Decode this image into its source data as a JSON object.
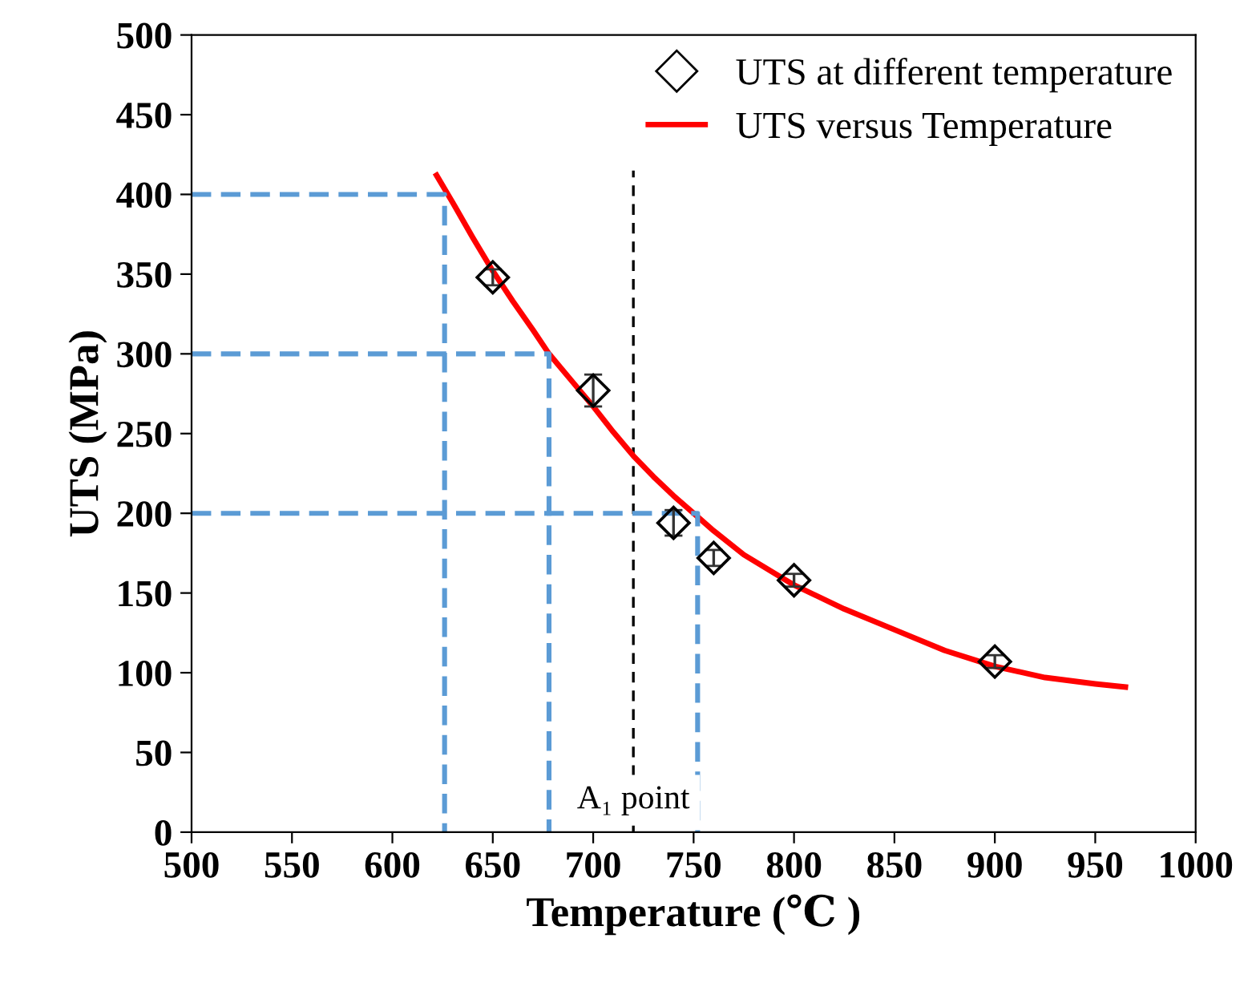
{
  "chart_data": {
    "type": "scatter",
    "xlabel": "Temperature (℃ )",
    "ylabel": "UTS (MPa)",
    "xlim": [
      500,
      1000
    ],
    "xticks": [
      500,
      550,
      600,
      650,
      700,
      750,
      800,
      850,
      900,
      950,
      1000
    ],
    "ylim": [
      0,
      500
    ],
    "yticks": [
      0,
      50,
      100,
      150,
      200,
      250,
      300,
      350,
      400,
      450,
      500
    ],
    "grid": false,
    "legend": "top right",
    "marker": "diamond",
    "series": [
      {
        "name": "UTS at different temperature",
        "color": "#000000",
        "x": [
          650,
          700,
          740,
          760,
          800,
          900
        ],
        "values": [
          348,
          277,
          194,
          172,
          158,
          107
        ],
        "errors": [
          5,
          10,
          8,
          5,
          4,
          4
        ]
      },
      {
        "name": "UTS versus Temperature",
        "type": "line",
        "color": "#ff0000",
        "marker": "none",
        "line_style": "solid",
        "x": [
          622,
          630,
          640,
          650,
          660,
          670,
          678,
          690,
          700,
          710,
          720,
          730,
          740,
          750,
          760,
          775,
          800,
          825,
          850,
          875,
          900,
          925,
          950,
          965
        ],
        "values": [
          412,
          395,
          373,
          352,
          333,
          315,
          300,
          282,
          267,
          251,
          236,
          223,
          211,
          200,
          189,
          174,
          155,
          140,
          127,
          114,
          104,
          97,
          93,
          91
        ]
      },
      {
        "type": "line",
        "color": "#5b9bd5",
        "marker": "none",
        "line_style": "dashed",
        "x": [
          500,
          626,
          626
        ],
        "values": [
          400,
          400,
          0
        ]
      },
      {
        "type": "line",
        "color": "#5b9bd5",
        "marker": "none",
        "line_style": "dashed",
        "x": [
          500,
          678,
          678
        ],
        "values": [
          300,
          300,
          0
        ]
      },
      {
        "type": "line",
        "color": "#5b9bd5",
        "marker": "none",
        "line_style": "dashed",
        "x": [
          500,
          752,
          752
        ],
        "values": [
          200,
          200,
          0
        ]
      }
    ],
    "ref_lines": [
      {
        "axis": "x",
        "value": 720,
        "label": "A₁ point",
        "color": "#000000",
        "line_style": "dashed"
      }
    ]
  }
}
